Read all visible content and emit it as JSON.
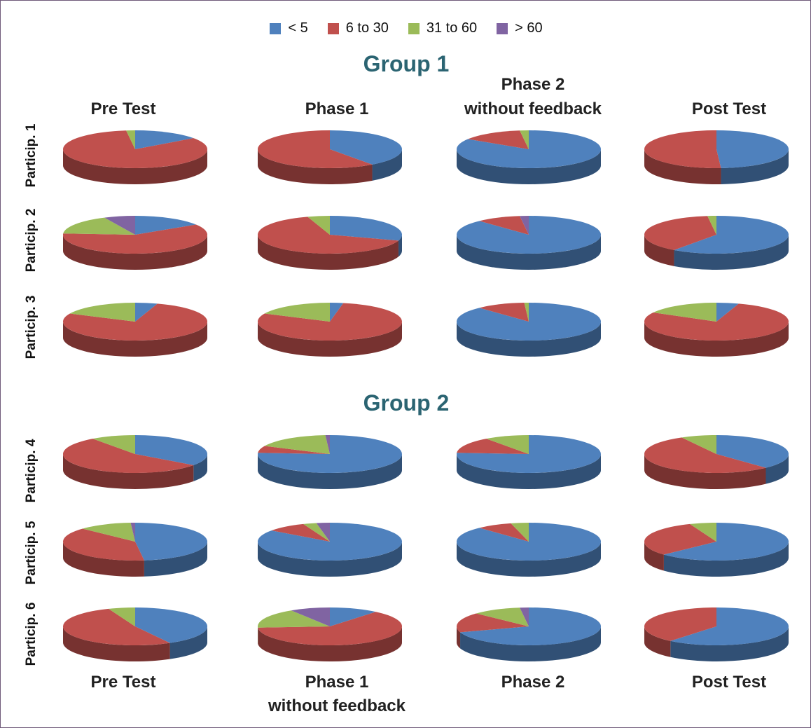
{
  "legend": [
    {
      "label": "< 5",
      "color": "#4f81bd"
    },
    {
      "label": "6 to 30",
      "color": "#c0504d"
    },
    {
      "label": "31 to 60",
      "color": "#9bbb59"
    },
    {
      "label": "> 60",
      "color": "#8064a2"
    }
  ],
  "groups": [
    "Group 1",
    "Group 2"
  ],
  "top_headers": [
    "Pre Test",
    "Phase 1",
    "Phase 2",
    "without feedback",
    "Post Test"
  ],
  "bottom_headers": [
    "Pre Test",
    "Phase 1",
    "without feedback",
    "Phase 2",
    "Post Test"
  ],
  "rows": [
    "Particip. 1",
    "Particip. 2",
    "Particip. 3",
    "Particip. 4",
    "Particip. 5",
    "Particip. 6"
  ],
  "chart_data": {
    "type": "pie",
    "series_order": [
      "< 5",
      "6 to 30",
      "31 to 60",
      "> 60"
    ],
    "units": "percent",
    "cells": [
      [
        [
          15,
          83,
          2,
          0
        ],
        [
          40,
          60,
          0,
          0
        ],
        [
          84,
          14,
          2,
          0
        ],
        [
          49,
          51,
          0,
          0
        ]
      ],
      [
        [
          16,
          60,
          17,
          7
        ],
        [
          30,
          65,
          5,
          0
        ],
        [
          88,
          10,
          0,
          2
        ],
        [
          60,
          38,
          2,
          0
        ]
      ],
      [
        [
          5,
          77,
          18,
          0
        ],
        [
          3,
          79,
          18,
          0
        ],
        [
          88,
          11,
          1,
          0
        ],
        [
          5,
          78,
          17,
          0
        ]
      ],
      [
        [
          35,
          55,
          10,
          0
        ],
        [
          76,
          6,
          17,
          1
        ],
        [
          76,
          14,
          10,
          0
        ],
        [
          38,
          54,
          8,
          0
        ]
      ],
      [
        [
          48,
          39,
          12,
          1
        ],
        [
          85,
          9,
          3,
          3
        ],
        [
          88,
          8,
          4,
          0
        ],
        [
          63,
          31,
          6,
          0
        ]
      ],
      [
        [
          42,
          52,
          6,
          0
        ],
        [
          11,
          63,
          17,
          9
        ],
        [
          70,
          17,
          11,
          2
        ],
        [
          61,
          39,
          0,
          0
        ]
      ]
    ]
  }
}
